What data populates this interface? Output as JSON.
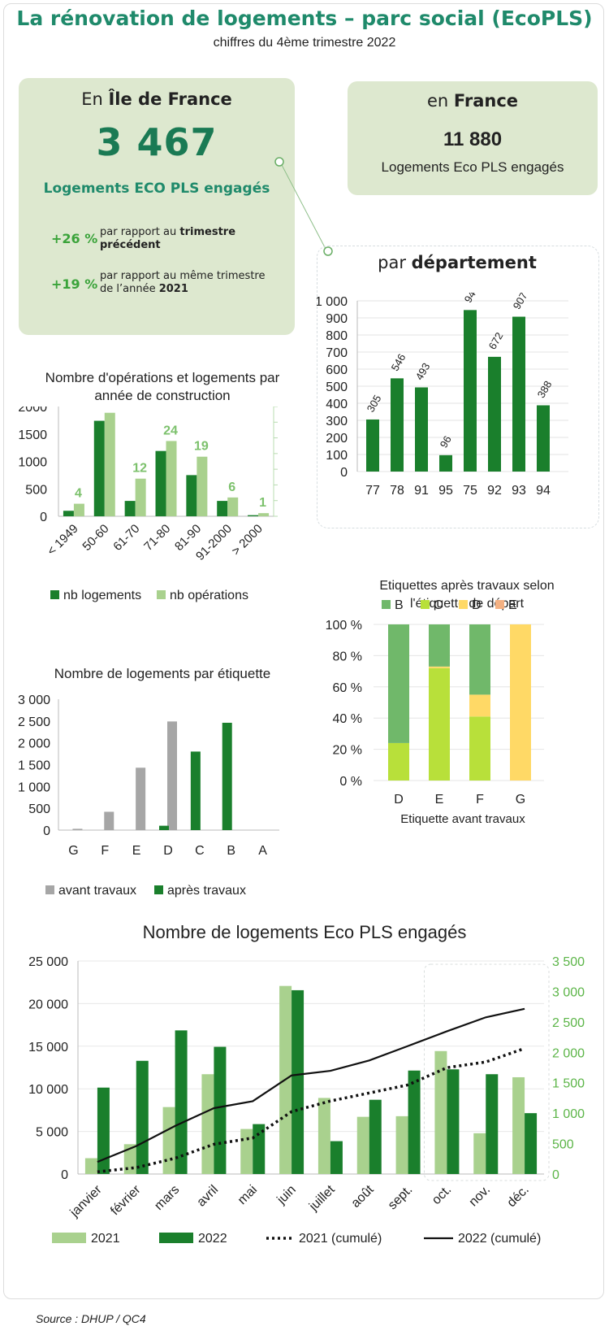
{
  "header": {
    "title": "La rénovation de logements – parc social (EcoPLS)",
    "subtitle": "chiffres du 4ème trimestre 2022"
  },
  "idf": {
    "head_prefix": "En ",
    "head_region": "Île de France",
    "big_number": "3 467",
    "label": "Logements ECO PLS engagés",
    "stat1_pct": "+26 %",
    "stat1_text_a": "par rapport au ",
    "stat1_text_b": "trimestre précédent",
    "stat2_pct": "+19 %",
    "stat2_text_a": "par rapport au même trimestre de l’année ",
    "stat2_text_b": "2021"
  },
  "france": {
    "head_prefix": "en ",
    "head_region": "France",
    "big_number": "11 880",
    "label": "Logements Eco PLS engagés"
  },
  "source": "Source : DHUP / QC4",
  "colors": {
    "dark_green": "#1a7f2c",
    "light_green": "#a9d18e",
    "mid_green": "#70b86a",
    "yellow_green": "#b8e03a",
    "yellow": "#ffd966",
    "orange": "#f4b183",
    "gray": "#a6a6a6",
    "title_green": "#1f8a6b"
  },
  "chart_data": [
    {
      "id": "departement",
      "type": "bar",
      "title_prefix": "par ",
      "title_bold": "département",
      "categories": [
        "77",
        "78",
        "91",
        "95",
        "75",
        "92",
        "93",
        "94"
      ],
      "values": [
        305,
        546,
        493,
        96,
        946,
        672,
        907,
        388
      ],
      "ylim": [
        0,
        1000
      ],
      "yticks": [
        "0",
        "100",
        "200",
        "300",
        "400",
        "500",
        "600",
        "700",
        "800",
        "900",
        "1 000"
      ],
      "grid": true
    },
    {
      "id": "construction",
      "type": "bar",
      "title": "Nombre d'opérations et logements par année de construction",
      "categories": [
        "< 1949",
        "50-60",
        "61-70",
        "71-80",
        "81-90",
        "91-2000",
        "> 2000"
      ],
      "series": [
        {
          "name": "nb logements",
          "values": [
            100,
            1740,
            280,
            1190,
            750,
            280,
            20
          ],
          "axis": "left"
        },
        {
          "name": "nb opérations",
          "values": [
            4,
            33,
            12,
            24,
            19,
            6,
            1
          ],
          "axis": "right"
        }
      ],
      "ylim": [
        0,
        2000
      ],
      "yticks": [
        "0",
        "500",
        "1000",
        "1500",
        "2000"
      ],
      "y2lim": [
        0,
        35
      ],
      "legend": "bottom"
    },
    {
      "id": "etiquette",
      "type": "bar",
      "title": "Nombre de logements par étiquette",
      "categories": [
        "G",
        "F",
        "E",
        "D",
        "C",
        "B",
        "A"
      ],
      "series": [
        {
          "name": "avant travaux",
          "values": [
            30,
            420,
            1430,
            2490,
            0,
            0,
            0
          ]
        },
        {
          "name": "après travaux",
          "values": [
            0,
            0,
            0,
            100,
            1800,
            2460,
            0
          ]
        }
      ],
      "ylim": [
        0,
        3000
      ],
      "yticks": [
        "0",
        "500",
        "1 000",
        "1 500",
        "2 000",
        "2 500",
        "3 000"
      ],
      "legend": "bottom"
    },
    {
      "id": "etiquettes-apres",
      "type": "bar",
      "stacked": true,
      "title": "Etiquettes après travaux selon l'étiquette de départ",
      "xlabel": "Etiquette avant travaux",
      "categories": [
        "D",
        "E",
        "F",
        "G"
      ],
      "series": [
        {
          "name": "B",
          "values": [
            76,
            27,
            45,
            0
          ]
        },
        {
          "name": "C",
          "values": [
            24,
            72,
            41,
            0
          ]
        },
        {
          "name": "D",
          "values": [
            0,
            1,
            14,
            100
          ]
        },
        {
          "name": "E",
          "values": [
            0,
            0,
            0,
            0
          ]
        }
      ],
      "ylim": [
        0,
        100
      ],
      "yticks": [
        "0 %",
        "20 %",
        "40 %",
        "60 %",
        "80 %",
        "100 %"
      ],
      "legend": "top"
    },
    {
      "id": "mensuel",
      "type": "bar",
      "title": "Nombre de logements Eco PLS engagés",
      "categories": [
        "janvier",
        "février",
        "mars",
        "avril",
        "mai",
        "juin",
        "juillet",
        "août",
        "sept.",
        "oct.",
        "nov.",
        "déc."
      ],
      "series": [
        {
          "name": "2021",
          "type": "bar",
          "axis": "right",
          "values": [
            260,
            490,
            1100,
            1640,
            740,
            3090,
            1250,
            940,
            950,
            2020,
            670,
            1590
          ]
        },
        {
          "name": "2022",
          "type": "bar",
          "axis": "right",
          "values": [
            1420,
            1860,
            2360,
            2090,
            820,
            3020,
            540,
            1220,
            1700,
            1720,
            1640,
            1000
          ]
        },
        {
          "name": "2021 (cumulé)",
          "type": "line",
          "axis": "left",
          "style": "dotted",
          "values": [
            260,
            750,
            1850,
            3490,
            4230,
            7320,
            8570,
            9510,
            10460,
            12480,
            13150,
            14740
          ]
        },
        {
          "name": "2022 (cumulé)",
          "type": "line",
          "axis": "left",
          "style": "solid",
          "values": [
            1420,
            3280,
            5640,
            7730,
            8550,
            11570,
            12110,
            13330,
            15030,
            16750,
            18390,
            19390
          ]
        }
      ],
      "ylim": [
        0,
        25000
      ],
      "yticks": [
        "0",
        "5 000",
        "10 000",
        "15 000",
        "20 000",
        "25 000"
      ],
      "y2lim": [
        0,
        3500
      ],
      "y2ticks": [
        "0",
        "500",
        "1 000",
        "1 500",
        "2 000",
        "2 500",
        "3 000",
        "3 500"
      ],
      "legend": "bottom"
    }
  ]
}
